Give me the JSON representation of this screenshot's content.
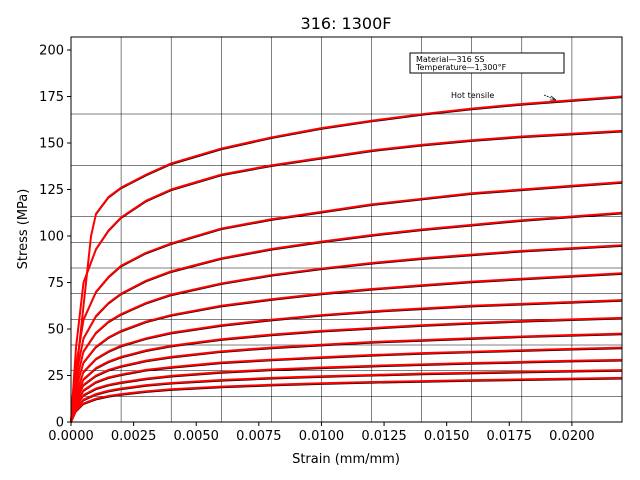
{
  "chart_data": {
    "type": "line",
    "title": "316: 1300F",
    "xlabel": "Strain (mm/mm)",
    "ylabel": "Stress (MPa)",
    "xlim": [
      0,
      0.022
    ],
    "ylim": [
      0,
      207
    ],
    "xticks": [
      0.0,
      0.0025,
      0.005,
      0.0075,
      0.01,
      0.0125,
      0.015,
      0.0175,
      0.02
    ],
    "xtick_labels": [
      "0.0000",
      "0.0025",
      "0.0050",
      "0.0075",
      "0.0100",
      "0.0125",
      "0.0150",
      "0.0175",
      "0.0200"
    ],
    "yticks": [
      0,
      25,
      50,
      75,
      100,
      125,
      150,
      175,
      200
    ],
    "ytick_labels": [
      "0",
      "25",
      "50",
      "75",
      "100",
      "125",
      "150",
      "175",
      "200"
    ],
    "grid": false,
    "annotations": {
      "box_line1": "Material—316 SS",
      "box_line2": "Temperature—1,300°F",
      "hot_tensile": "Hot tensile"
    },
    "colors": {
      "model": "#ff0000",
      "digitized": "#000000",
      "background_grid": "#000000"
    },
    "series": [
      {
        "x": [
          0.0,
          0.0002,
          0.0004,
          0.0006,
          0.0008,
          0.001,
          0.0015,
          0.002,
          0.003,
          0.004,
          0.006,
          0.008,
          0.01,
          0.012,
          0.014,
          0.016,
          0.018,
          0.02,
          0.022
        ],
        "y": [
          0,
          25,
          50,
          75,
          100,
          112,
          121,
          126,
          133,
          139,
          147,
          153,
          158,
          162,
          165.5,
          168.5,
          171,
          173,
          175
        ]
      },
      {
        "x": [
          0.0,
          0.0002,
          0.0005,
          0.001,
          0.0015,
          0.002,
          0.003,
          0.004,
          0.006,
          0.008,
          0.01,
          0.012,
          0.014,
          0.016,
          0.018,
          0.02,
          0.022
        ],
        "y": [
          0,
          40,
          75,
          93,
          103,
          110,
          119,
          125,
          133,
          138,
          142,
          146,
          149,
          151.5,
          153.5,
          155,
          156.5
        ]
      },
      {
        "x": [
          0.0,
          0.0002,
          0.0005,
          0.001,
          0.0015,
          0.002,
          0.003,
          0.004,
          0.006,
          0.008,
          0.01,
          0.012,
          0.014,
          0.016,
          0.018,
          0.02,
          0.022
        ],
        "y": [
          0,
          30,
          55,
          70,
          78,
          84,
          91,
          96,
          104,
          109,
          113,
          117,
          120,
          123,
          125,
          127,
          129
        ]
      },
      {
        "x": [
          0.0,
          0.0002,
          0.0005,
          0.001,
          0.0015,
          0.002,
          0.003,
          0.004,
          0.006,
          0.008,
          0.01,
          0.012,
          0.014,
          0.016,
          0.018,
          0.02,
          0.022
        ],
        "y": [
          0,
          25,
          45,
          57,
          64,
          69,
          76,
          81,
          88,
          93,
          97,
          100.5,
          103.5,
          106,
          108.5,
          110.5,
          112.5
        ]
      },
      {
        "x": [
          0.0,
          0.0002,
          0.0005,
          0.001,
          0.0015,
          0.002,
          0.003,
          0.004,
          0.006,
          0.008,
          0.01,
          0.012,
          0.014,
          0.016,
          0.018,
          0.02,
          0.022
        ],
        "y": [
          0,
          21,
          38,
          48,
          54,
          58,
          64,
          68.5,
          74.5,
          79,
          82.5,
          85.5,
          88,
          90,
          92,
          93.5,
          95
        ]
      },
      {
        "x": [
          0.0,
          0.0002,
          0.0005,
          0.001,
          0.0015,
          0.002,
          0.003,
          0.004,
          0.006,
          0.008,
          0.01,
          0.012,
          0.014,
          0.016,
          0.018,
          0.02,
          0.022
        ],
        "y": [
          0,
          18,
          32,
          40.5,
          45.5,
          49,
          54,
          57.5,
          62.5,
          66,
          69,
          71.5,
          73.5,
          75.5,
          77,
          78.5,
          80
        ]
      },
      {
        "x": [
          0.0,
          0.0002,
          0.0005,
          0.001,
          0.0015,
          0.002,
          0.003,
          0.004,
          0.006,
          0.008,
          0.01,
          0.012,
          0.014,
          0.016,
          0.018,
          0.02,
          0.022
        ],
        "y": [
          0,
          15,
          27,
          34,
          38,
          41,
          45,
          48,
          52,
          55,
          57.5,
          59.5,
          61,
          62.5,
          63.5,
          64.5,
          65.5
        ]
      },
      {
        "x": [
          0.0,
          0.0002,
          0.0005,
          0.001,
          0.0015,
          0.002,
          0.003,
          0.004,
          0.006,
          0.008,
          0.01,
          0.012,
          0.014,
          0.016,
          0.018,
          0.02,
          0.022
        ],
        "y": [
          0,
          13,
          23,
          29,
          32.5,
          35,
          38.5,
          41,
          44.5,
          47,
          49,
          50.5,
          52,
          53.2,
          54.3,
          55.2,
          56
        ]
      },
      {
        "x": [
          0.0,
          0.0002,
          0.0005,
          0.001,
          0.0015,
          0.002,
          0.003,
          0.004,
          0.006,
          0.008,
          0.01,
          0.012,
          0.014,
          0.016,
          0.018,
          0.02,
          0.022
        ],
        "y": [
          0,
          11.5,
          20,
          25,
          28,
          30,
          33,
          35,
          38,
          40,
          41.5,
          43,
          44,
          45,
          46,
          46.8,
          47.5
        ]
      },
      {
        "x": [
          0.0,
          0.0002,
          0.0005,
          0.001,
          0.0015,
          0.002,
          0.003,
          0.004,
          0.006,
          0.008,
          0.01,
          0.012,
          0.014,
          0.016,
          0.018,
          0.02,
          0.022
        ],
        "y": [
          0,
          10,
          17,
          21.5,
          24,
          25.5,
          28,
          29.5,
          32,
          33.5,
          34.8,
          36,
          37,
          37.8,
          38.6,
          39.3,
          40
        ]
      },
      {
        "x": [
          0.0,
          0.0002,
          0.0005,
          0.001,
          0.0015,
          0.002,
          0.003,
          0.004,
          0.006,
          0.008,
          0.01,
          0.012,
          0.014,
          0.016,
          0.018,
          0.02,
          0.022
        ],
        "y": [
          0,
          8.5,
          14.5,
          18,
          20,
          21.3,
          23.3,
          24.8,
          26.8,
          28.2,
          29.3,
          30.2,
          31,
          31.7,
          32.3,
          32.9,
          33.4
        ]
      },
      {
        "x": [
          0.0,
          0.0002,
          0.0005,
          0.001,
          0.0015,
          0.002,
          0.003,
          0.004,
          0.006,
          0.008,
          0.01,
          0.012,
          0.014,
          0.016,
          0.018,
          0.02,
          0.022
        ],
        "y": [
          0,
          7,
          12,
          15,
          16.8,
          18,
          19.8,
          21,
          22.6,
          23.7,
          24.6,
          25.3,
          26,
          26.5,
          27,
          27.5,
          27.9
        ]
      },
      {
        "x": [
          0.0,
          0.0002,
          0.0005,
          0.001,
          0.0015,
          0.002,
          0.003,
          0.004,
          0.006,
          0.008,
          0.01,
          0.012,
          0.014,
          0.016,
          0.018,
          0.02,
          0.022
        ],
        "y": [
          0,
          6,
          10,
          12.5,
          14,
          15,
          16.5,
          17.6,
          19,
          20,
          20.8,
          21.5,
          22,
          22.5,
          22.9,
          23.3,
          23.7
        ]
      }
    ]
  }
}
